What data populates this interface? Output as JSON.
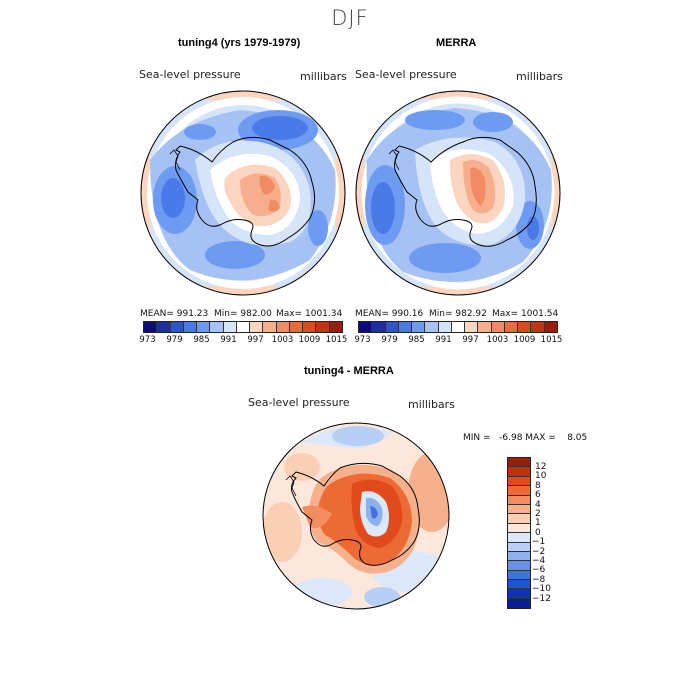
{
  "suptitle": "DJF",
  "panels": {
    "model": {
      "title": "tuning4 (yrs 1979-1979)",
      "variable": "Sea-level pressure",
      "units": "millibars",
      "mean_label": "MEAN= 991.23",
      "min_label": "Min= 982.00",
      "max_label": "Max= 1001.34"
    },
    "obs": {
      "title": "MERRA",
      "variable": "Sea-level pressure",
      "units": "millibars",
      "mean_label": "MEAN= 990.16",
      "min_label": "Min= 982.92",
      "max_label": "Max= 1001.54"
    },
    "diff": {
      "title": "tuning4 - MERRA",
      "variable": "Sea-level pressure",
      "units": "millibars",
      "minmax_label": "MIN =   -6.98 MAX =    8.05"
    }
  },
  "colorbar_top": {
    "colors": [
      "#0d0d7a",
      "#1e2fa6",
      "#2f55cc",
      "#4a7ae8",
      "#6e9bf2",
      "#a6c2f5",
      "#d6e4fa",
      "#ffffff",
      "#fbd5c0",
      "#f7ae8d",
      "#f28a63",
      "#ed6a3d",
      "#e04a21",
      "#c43315",
      "#9a1d0b"
    ],
    "tick_labels": [
      "973",
      "979",
      "985",
      "991",
      "997",
      "1003",
      "1009",
      "1015"
    ]
  },
  "colorbar_diff": {
    "colors": [
      "#9a1d0b",
      "#c22f0f",
      "#e04a1c",
      "#ee6a34",
      "#f28d5f",
      "#f7b08c",
      "#fbcfb6",
      "#fde7da",
      "#dbe7fa",
      "#b8cff5",
      "#8eb0f0",
      "#6a8fe8",
      "#4470e0",
      "#2550d2",
      "#1131b6",
      "#0a1c96"
    ],
    "labels": [
      "12",
      "10",
      "8",
      "6",
      "4",
      "2",
      "1",
      "0",
      "−1",
      "−2",
      "−4",
      "−6",
      "−8",
      "−10",
      "−12"
    ]
  }
}
